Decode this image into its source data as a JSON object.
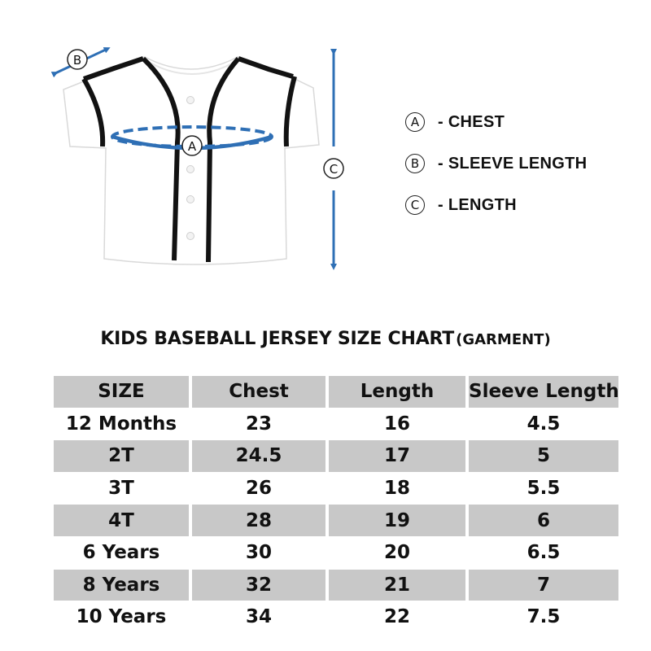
{
  "diagram": {
    "markers": {
      "a": "A",
      "b": "B",
      "c": "C"
    },
    "colors": {
      "measure_blue": "#2e6fb5",
      "trim": "#121212",
      "shirt": "#ffffff",
      "shirt_edge": "#d9d9d9"
    }
  },
  "legend": [
    {
      "marker": "A",
      "label": "- CHEST"
    },
    {
      "marker": "B",
      "label": "- SLEEVE LENGTH"
    },
    {
      "marker": "C",
      "label": "- LENGTH"
    }
  ],
  "chart": {
    "title": "KIDS BASEBALL JERSEY SIZE CHART",
    "subtitle": "(GARMENT)"
  },
  "table": {
    "headers": [
      "SIZE",
      "Chest",
      "Length",
      "Sleeve Length"
    ],
    "rows": [
      [
        "12 Months",
        "23",
        "16",
        "4.5"
      ],
      [
        "2T",
        "24.5",
        "17",
        "5"
      ],
      [
        "3T",
        "26",
        "18",
        "5.5"
      ],
      [
        "4T",
        "28",
        "19",
        "6"
      ],
      [
        "6 Years",
        "30",
        "20",
        "6.5"
      ],
      [
        "8 Years",
        "32",
        "21",
        "7"
      ],
      [
        "10 Years",
        "34",
        "22",
        "7.5"
      ]
    ],
    "shade_color": "#c8c8c8"
  }
}
